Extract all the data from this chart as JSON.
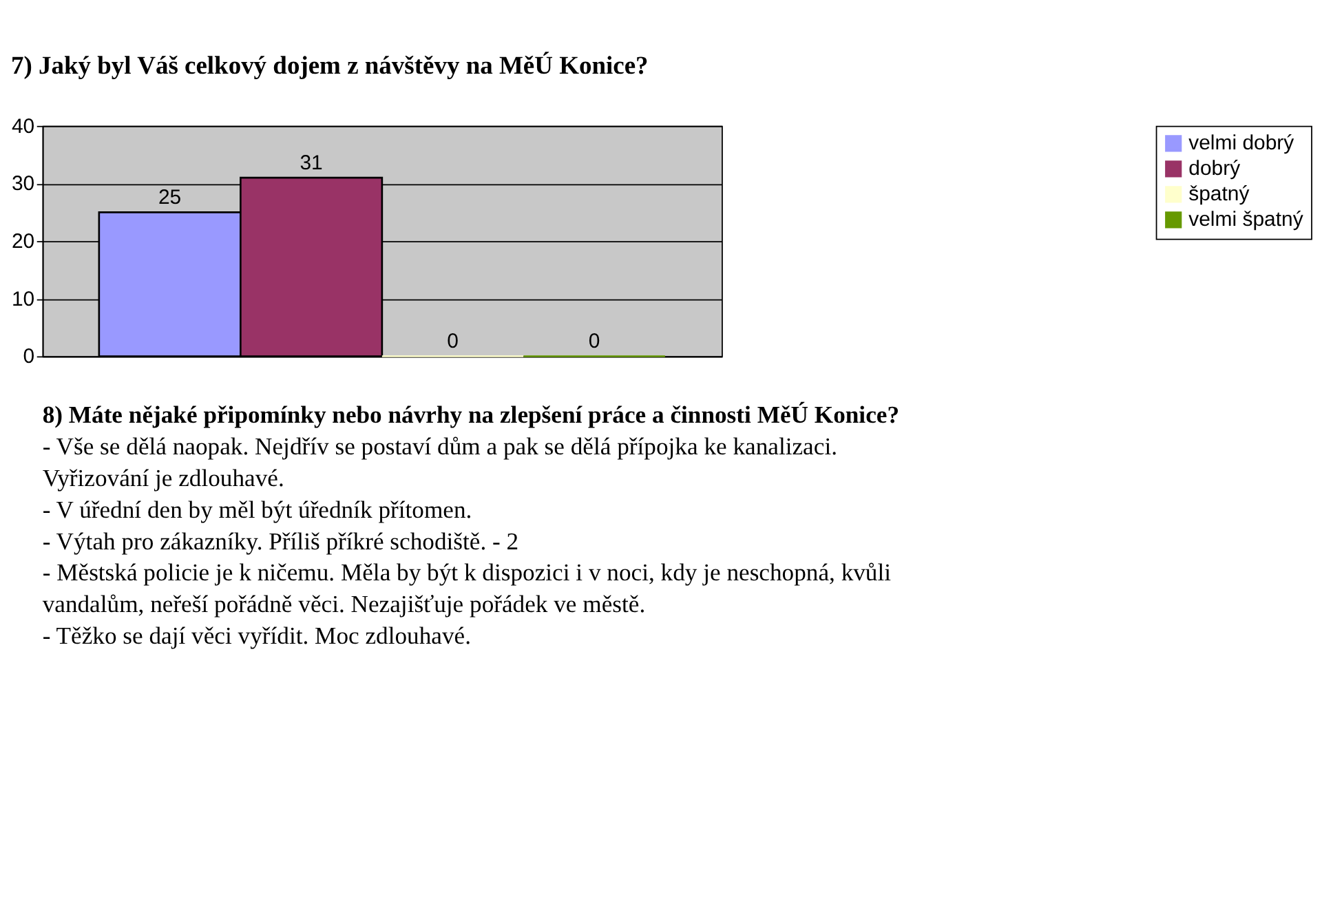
{
  "chart_data": {
    "type": "bar",
    "title": "7)  Jaký byl Váš celkový dojem z návštěvy na MěÚ Konice?",
    "categories": [
      null
    ],
    "series": [
      {
        "name": "velmi dobrý",
        "color": "#9999ff",
        "values": [
          25
        ]
      },
      {
        "name": "dobrý",
        "color": "#993366",
        "values": [
          31
        ]
      },
      {
        "name": "špatný",
        "color": "#ffffcc",
        "values": [
          0
        ]
      },
      {
        "name": "velmi špatný",
        "color": "#669900",
        "values": [
          0
        ]
      }
    ],
    "ylim": [
      0,
      40
    ],
    "yticks": [
      0,
      10,
      20,
      30,
      40
    ],
    "grid": "y",
    "legend": "right",
    "data_labels": true,
    "tick_labels": "y",
    "annotations": [
      "8)  Máte nějaké připomínky nebo návrhy na zlepšení práce a činnosti MěÚ Konice?",
      "- Vše se dělá naopak. Nejdřív se postaví dům a pak se dělá přípojka ke kanalizaci. Vyřizování je zdlouhavé.",
      "- V úřední den by měl být úředník přítomen.",
      "- Výtah pro zákazníky. Příliš příkré schodiště. - 2",
      "- Městská policie je k ničemu. Měla by být k dispozici i v noci, kdy je neschopná, kvůli vandalům, neřeší pořádně věci. Nezajišťuje pořádek ve městě.",
      "- Těžko se dají věci vyřídit. Moc zdlouhavé."
    ]
  }
}
